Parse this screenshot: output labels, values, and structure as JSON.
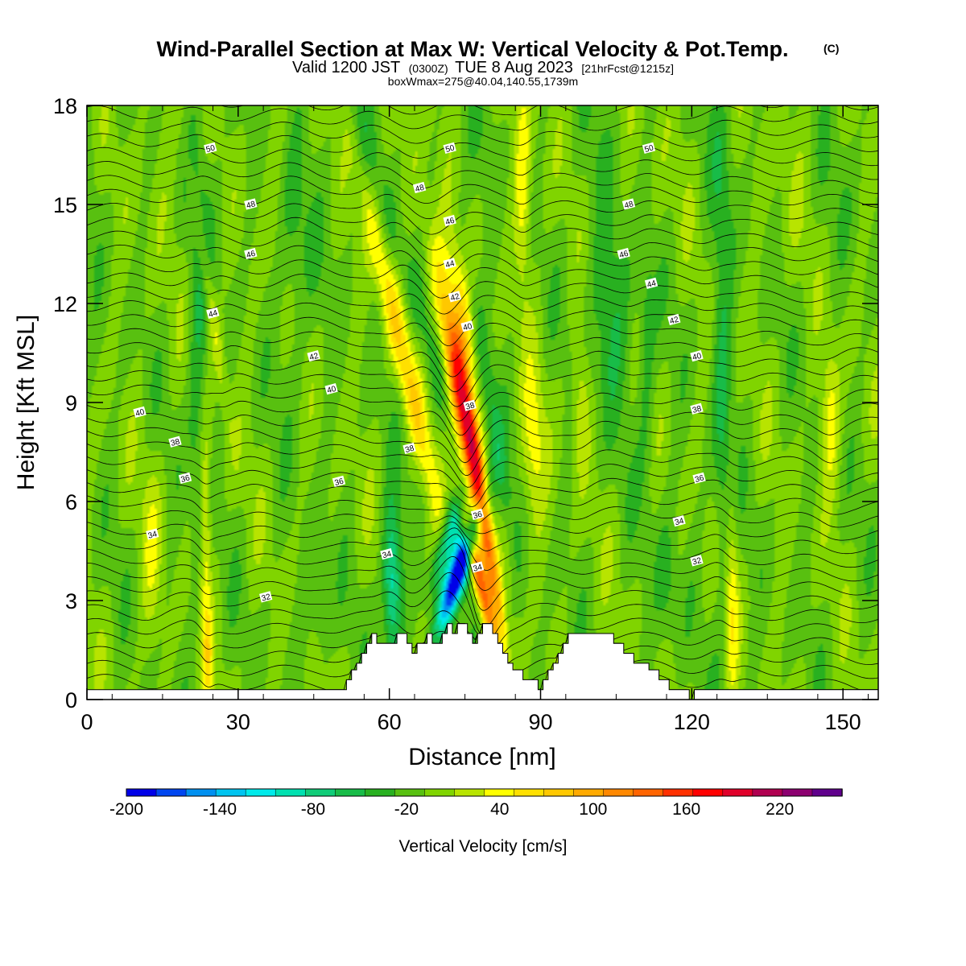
{
  "title": {
    "main": "Wind-Parallel Section at Max W: Vertical Velocity & Pot.Temp.",
    "copyright": "(C)",
    "sub_a": "Valid 1200 JST",
    "sub_b": "(0300Z)",
    "sub_c": "TUE 8 Aug 2023",
    "sub_d": "[21hrFcst@1215z]",
    "line3": "boxWmax=275@40.04,140.55,1739m"
  },
  "colors": {
    "background": "#ffffff",
    "terrain": "#ffffff",
    "contour_line": "#000000",
    "frame": "#000000"
  },
  "chart_data": {
    "type": "heatmap",
    "title": "Wind-Parallel Section at Max W: Vertical Velocity & Pot.Temp.",
    "xlabel": "Distance [nm]",
    "ylabel": "Height [Kft MSL]",
    "xlim": [
      0,
      157
    ],
    "ylim": [
      0,
      18
    ],
    "x_ticks": [
      0,
      30,
      60,
      90,
      120,
      150
    ],
    "y_ticks": [
      0,
      3,
      6,
      9,
      12,
      15,
      18
    ],
    "grid": false,
    "colorbar": {
      "title": "Vertical Velocity [cm/s]",
      "labels": [
        "-200",
        "-140",
        "-80",
        "-20",
        "40",
        "100",
        "160",
        "220"
      ],
      "label_values": [
        -200,
        -140,
        -80,
        -20,
        40,
        100,
        160,
        220
      ],
      "bin_edges": [
        -200,
        -180,
        -160,
        -140,
        -120,
        -100,
        -80,
        -60,
        -40,
        -20,
        0,
        20,
        40,
        60,
        80,
        100,
        120,
        140,
        160,
        180,
        200,
        220,
        240,
        260
      ],
      "colors": [
        "#0000e8",
        "#0046f0",
        "#0090f0",
        "#00c4f0",
        "#00eaea",
        "#00e0b0",
        "#10cc78",
        "#18bc48",
        "#28b020",
        "#58c010",
        "#80d400",
        "#b8e400",
        "#ffff00",
        "#ffe000",
        "#ffc800",
        "#ffaa00",
        "#ff8800",
        "#ff6400",
        "#ff3000",
        "#ff0000",
        "#e0002a",
        "#b00050",
        "#8c0070",
        "#60008c"
      ]
    },
    "terrain_profile": {
      "x": [
        0,
        51.5,
        51.5,
        52.5,
        52.5,
        53.5,
        53.5,
        54.5,
        54.5,
        55.5,
        55.5,
        56.5,
        56.5,
        57.5,
        57.5,
        61.5,
        61.5,
        63.5,
        63.5,
        64.5,
        64.5,
        65.5,
        65.5,
        67.5,
        67.5,
        68.5,
        68.5,
        70.5,
        70.5,
        71.5,
        71.5,
        72.5,
        72.5,
        73.5,
        73.5,
        75.5,
        75.5,
        76.5,
        76.5,
        77.5,
        77.5,
        78.5,
        78.5,
        80.5,
        80.5,
        81.5,
        81.5,
        82.5,
        82.5,
        83.5,
        83.5,
        84.5,
        84.5,
        86.5,
        86.5,
        89.5,
        89.5,
        90.5,
        90.5,
        91.5,
        91.5,
        92.5,
        92.5,
        93.5,
        93.5,
        94.5,
        94.5,
        95.5,
        95.5,
        104.5,
        104.5,
        106.5,
        106.5,
        108.5,
        108.5,
        111.5,
        111.5,
        113.5,
        113.5,
        115.5,
        115.5,
        119.5,
        119.5,
        120.5,
        120.5,
        157
      ],
      "height_kft": [
        0.3,
        0.3,
        0.6,
        0.6,
        0.9,
        0.9,
        1.1,
        1.1,
        1.4,
        1.4,
        1.7,
        1.7,
        2.0,
        2.0,
        1.7,
        1.7,
        2.0,
        2.0,
        1.7,
        1.7,
        1.4,
        1.4,
        1.7,
        1.7,
        2.0,
        2.0,
        1.7,
        1.7,
        2.0,
        2.0,
        2.3,
        2.3,
        2.0,
        2.0,
        2.3,
        2.3,
        2.0,
        2.0,
        1.7,
        1.7,
        2.0,
        2.0,
        2.3,
        2.3,
        2.0,
        2.0,
        1.7,
        1.7,
        1.4,
        1.4,
        1.1,
        1.1,
        0.9,
        0.9,
        0.6,
        0.6,
        0.3,
        0.3,
        0.6,
        0.6,
        0.9,
        0.9,
        1.1,
        1.1,
        1.4,
        1.4,
        1.7,
        1.7,
        2.0,
        2.0,
        1.7,
        1.7,
        1.4,
        1.4,
        1.1,
        1.1,
        0.9,
        0.9,
        0.6,
        0.6,
        0.3,
        0.3,
        0.0,
        0.0,
        0.3,
        0.3
      ]
    },
    "w_features": [
      {
        "x": 76.5,
        "z": 7.5,
        "sx": 1.8,
        "sz": 3.5,
        "w": 250,
        "tilt": -1.2
      },
      {
        "x": 77.5,
        "z": 3.8,
        "sx": 1.0,
        "sz": 1.5,
        "w": 140,
        "tilt": -1.5
      },
      {
        "x": 74.0,
        "z": 4.0,
        "sx": 1.5,
        "sz": 1.3,
        "w": -230,
        "tilt": 2.0
      },
      {
        "x": 72.0,
        "z": 5.0,
        "sx": 1.4,
        "sz": 1.2,
        "w": -90,
        "tilt": 2.0
      },
      {
        "x": 60.5,
        "z": 3.5,
        "sx": 1.3,
        "sz": 1.6,
        "w": -100,
        "tilt": 0.0
      },
      {
        "x": 80.5,
        "z": 5.5,
        "sx": 1.0,
        "sz": 3.0,
        "w": -85,
        "tilt": -1.0
      },
      {
        "x": 79.5,
        "z": 9.0,
        "sx": 1.5,
        "sz": 3.0,
        "w": -50,
        "tilt": -1.0
      },
      {
        "x": 62.5,
        "z": 10.5,
        "sx": 1.6,
        "sz": 4.0,
        "w": 75,
        "tilt": -1.5
      },
      {
        "x": 75.0,
        "z": 11.5,
        "sx": 1.5,
        "sz": 2.0,
        "w": 70,
        "tilt": -1.0
      },
      {
        "x": 68.5,
        "z": 10.5,
        "sx": 2.0,
        "sz": 5.0,
        "w": -40,
        "tilt": -2.0
      },
      {
        "x": 23.5,
        "z": 5.0,
        "sx": 0.8,
        "sz": 2.5,
        "w": 55,
        "tilt": 0.0
      },
      {
        "x": 24.5,
        "z": 12.0,
        "sx": 0.9,
        "sz": 2.5,
        "w": 45,
        "tilt": -1.0
      },
      {
        "x": 22.0,
        "z": 10.0,
        "sx": 1.4,
        "sz": 4.0,
        "w": -40,
        "tilt": 0.0
      },
      {
        "x": 24.0,
        "z": 1.2,
        "sx": 0.7,
        "sz": 1.0,
        "w": 45,
        "tilt": 0.0
      },
      {
        "x": 128.0,
        "z": 3.0,
        "sx": 0.9,
        "sz": 2.2,
        "w": 50,
        "tilt": 0.0
      },
      {
        "x": 126.0,
        "z": 9.5,
        "sx": 1.3,
        "sz": 5.0,
        "w": -40,
        "tilt": 0.0
      },
      {
        "x": 147.5,
        "z": 8.5,
        "sx": 1.3,
        "sz": 1.5,
        "w": 50,
        "tilt": 0.0
      },
      {
        "x": 104.0,
        "z": 11.5,
        "sx": 3.0,
        "sz": 2.0,
        "w": -40,
        "tilt": 0.0
      },
      {
        "x": 88.5,
        "z": 7.5,
        "sx": 1.6,
        "sz": 1.8,
        "w": 48,
        "tilt": 0.0
      },
      {
        "x": 98.0,
        "z": 9.0,
        "sx": 1.2,
        "sz": 1.5,
        "w": 40,
        "tilt": 0.0
      },
      {
        "x": 86.5,
        "z": 15.5,
        "sx": 1.0,
        "sz": 2.2,
        "w": 45,
        "tilt": 0.0
      },
      {
        "x": 111.0,
        "z": 10.5,
        "sx": 1.2,
        "sz": 3.0,
        "w": -35,
        "tilt": 0.0
      },
      {
        "x": 13.0,
        "z": 4.5,
        "sx": 1.5,
        "sz": 2.0,
        "w": 30,
        "tilt": 0.0
      },
      {
        "x": 41.0,
        "z": 14.0,
        "sx": 2.0,
        "sz": 3.0,
        "w": -30,
        "tilt": 0.0
      },
      {
        "x": 46.0,
        "z": 3.0,
        "sx": 1.5,
        "sz": 1.5,
        "w": -30,
        "tilt": 0.0
      },
      {
        "x": 115.0,
        "z": 3.5,
        "sx": 1.5,
        "sz": 1.5,
        "w": -30,
        "tilt": 0.0
      }
    ],
    "contour_labels": [
      {
        "x": 24.5,
        "z": 16.7,
        "label": "50"
      },
      {
        "x": 72.0,
        "z": 16.7,
        "label": "50"
      },
      {
        "x": 111.5,
        "z": 16.7,
        "label": "50"
      },
      {
        "x": 32.5,
        "z": 15.0,
        "label": "48"
      },
      {
        "x": 66.0,
        "z": 15.5,
        "label": "48"
      },
      {
        "x": 107.5,
        "z": 15.0,
        "label": "48"
      },
      {
        "x": 32.5,
        "z": 13.5,
        "label": "46"
      },
      {
        "x": 72.0,
        "z": 14.5,
        "label": "46"
      },
      {
        "x": 106.5,
        "z": 13.5,
        "label": "46"
      },
      {
        "x": 72.0,
        "z": 13.2,
        "label": "44"
      },
      {
        "x": 25.0,
        "z": 11.7,
        "label": "44"
      },
      {
        "x": 112.0,
        "z": 12.6,
        "label": "44"
      },
      {
        "x": 73.0,
        "z": 12.2,
        "label": "42"
      },
      {
        "x": 45.0,
        "z": 10.4,
        "label": "42"
      },
      {
        "x": 116.5,
        "z": 11.5,
        "label": "42"
      },
      {
        "x": 75.5,
        "z": 11.3,
        "label": "40"
      },
      {
        "x": 48.5,
        "z": 9.4,
        "label": "40"
      },
      {
        "x": 10.5,
        "z": 8.7,
        "label": "40"
      },
      {
        "x": 121.0,
        "z": 10.4,
        "label": "40"
      },
      {
        "x": 76.0,
        "z": 8.9,
        "label": "38"
      },
      {
        "x": 64.0,
        "z": 7.6,
        "label": "38"
      },
      {
        "x": 17.5,
        "z": 7.8,
        "label": "38"
      },
      {
        "x": 121.0,
        "z": 8.8,
        "label": "38"
      },
      {
        "x": 19.5,
        "z": 6.7,
        "label": "36"
      },
      {
        "x": 50.0,
        "z": 6.6,
        "label": "36"
      },
      {
        "x": 77.5,
        "z": 5.6,
        "label": "36"
      },
      {
        "x": 121.5,
        "z": 6.7,
        "label": "36"
      },
      {
        "x": 13.0,
        "z": 5.0,
        "label": "34"
      },
      {
        "x": 59.5,
        "z": 4.4,
        "label": "34"
      },
      {
        "x": 77.5,
        "z": 4.0,
        "label": "34"
      },
      {
        "x": 117.5,
        "z": 5.4,
        "label": "34"
      },
      {
        "x": 35.5,
        "z": 3.1,
        "label": "32"
      },
      {
        "x": 121.0,
        "z": 4.2,
        "label": "32"
      }
    ]
  }
}
